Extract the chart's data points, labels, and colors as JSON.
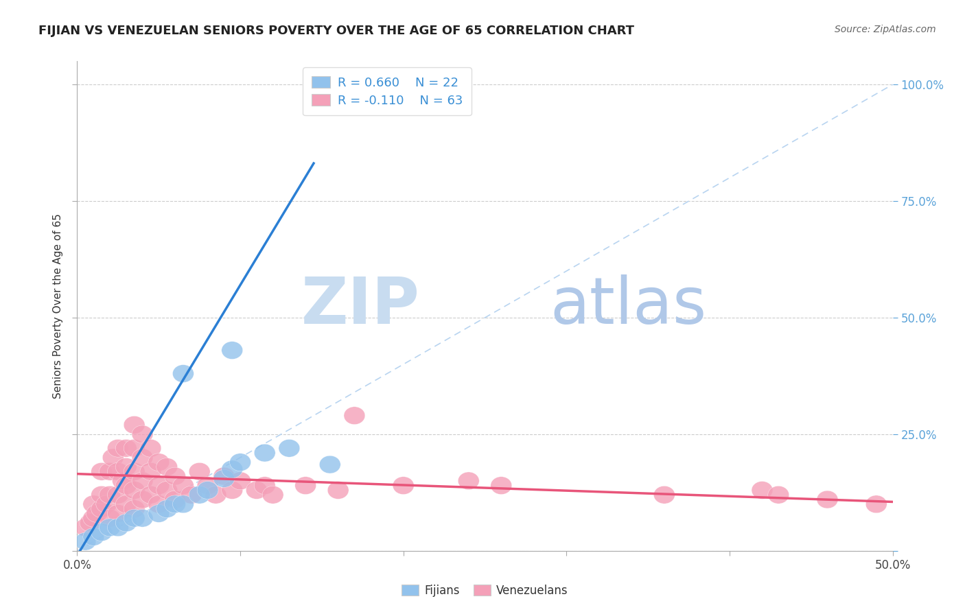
{
  "title": "FIJIAN VS VENEZUELAN SENIORS POVERTY OVER THE AGE OF 65 CORRELATION CHART",
  "source": "Source: ZipAtlas.com",
  "ylabel": "Seniors Poverty Over the Age of 65",
  "xlim": [
    0.0,
    0.5
  ],
  "ylim": [
    0.0,
    1.05
  ],
  "fijian_color": "#92C2EC",
  "venezuelan_color": "#F4A0B8",
  "fijian_line_color": "#2B7FD4",
  "venezuelan_line_color": "#E8557A",
  "diagonal_color": "#B8D4F0",
  "fijian_R": 0.66,
  "fijian_N": 22,
  "venezuelan_R": -0.11,
  "venezuelan_N": 63,
  "fijian_points": [
    [
      0.005,
      0.02
    ],
    [
      0.01,
      0.03
    ],
    [
      0.015,
      0.04
    ],
    [
      0.02,
      0.05
    ],
    [
      0.025,
      0.05
    ],
    [
      0.03,
      0.06
    ],
    [
      0.035,
      0.07
    ],
    [
      0.04,
      0.07
    ],
    [
      0.05,
      0.08
    ],
    [
      0.055,
      0.09
    ],
    [
      0.06,
      0.1
    ],
    [
      0.065,
      0.1
    ],
    [
      0.075,
      0.12
    ],
    [
      0.08,
      0.13
    ],
    [
      0.09,
      0.155
    ],
    [
      0.095,
      0.175
    ],
    [
      0.1,
      0.19
    ],
    [
      0.115,
      0.21
    ],
    [
      0.065,
      0.38
    ],
    [
      0.095,
      0.43
    ],
    [
      0.13,
      0.22
    ],
    [
      0.155,
      0.185
    ]
  ],
  "venezuelan_points": [
    [
      0.005,
      0.05
    ],
    [
      0.008,
      0.06
    ],
    [
      0.01,
      0.07
    ],
    [
      0.01,
      0.1
    ],
    [
      0.012,
      0.08
    ],
    [
      0.015,
      0.09
    ],
    [
      0.015,
      0.12
    ],
    [
      0.015,
      0.17
    ],
    [
      0.018,
      0.1
    ],
    [
      0.02,
      0.07
    ],
    [
      0.02,
      0.12
    ],
    [
      0.02,
      0.17
    ],
    [
      0.022,
      0.2
    ],
    [
      0.025,
      0.08
    ],
    [
      0.025,
      0.12
    ],
    [
      0.025,
      0.17
    ],
    [
      0.025,
      0.22
    ],
    [
      0.028,
      0.15
    ],
    [
      0.03,
      0.1
    ],
    [
      0.03,
      0.14
    ],
    [
      0.03,
      0.18
    ],
    [
      0.03,
      0.22
    ],
    [
      0.035,
      0.09
    ],
    [
      0.035,
      0.13
    ],
    [
      0.035,
      0.17
    ],
    [
      0.035,
      0.22
    ],
    [
      0.035,
      0.27
    ],
    [
      0.04,
      0.11
    ],
    [
      0.04,
      0.15
    ],
    [
      0.04,
      0.2
    ],
    [
      0.04,
      0.25
    ],
    [
      0.045,
      0.12
    ],
    [
      0.045,
      0.17
    ],
    [
      0.045,
      0.22
    ],
    [
      0.05,
      0.1
    ],
    [
      0.05,
      0.14
    ],
    [
      0.05,
      0.19
    ],
    [
      0.055,
      0.13
    ],
    [
      0.055,
      0.18
    ],
    [
      0.06,
      0.11
    ],
    [
      0.06,
      0.16
    ],
    [
      0.065,
      0.14
    ],
    [
      0.07,
      0.12
    ],
    [
      0.075,
      0.17
    ],
    [
      0.08,
      0.14
    ],
    [
      0.085,
      0.12
    ],
    [
      0.09,
      0.16
    ],
    [
      0.095,
      0.13
    ],
    [
      0.1,
      0.15
    ],
    [
      0.11,
      0.13
    ],
    [
      0.115,
      0.14
    ],
    [
      0.12,
      0.12
    ],
    [
      0.14,
      0.14
    ],
    [
      0.16,
      0.13
    ],
    [
      0.17,
      0.29
    ],
    [
      0.2,
      0.14
    ],
    [
      0.24,
      0.15
    ],
    [
      0.26,
      0.14
    ],
    [
      0.36,
      0.12
    ],
    [
      0.42,
      0.13
    ],
    [
      0.43,
      0.12
    ],
    [
      0.46,
      0.11
    ],
    [
      0.49,
      0.1
    ]
  ],
  "background_color": "#FFFFFF",
  "grid_color": "#CCCCCC",
  "watermark_zip": "ZIP",
  "watermark_atlas": "atlas",
  "watermark_color_zip": "#C8DCF0",
  "watermark_color_atlas": "#B0C8E8"
}
